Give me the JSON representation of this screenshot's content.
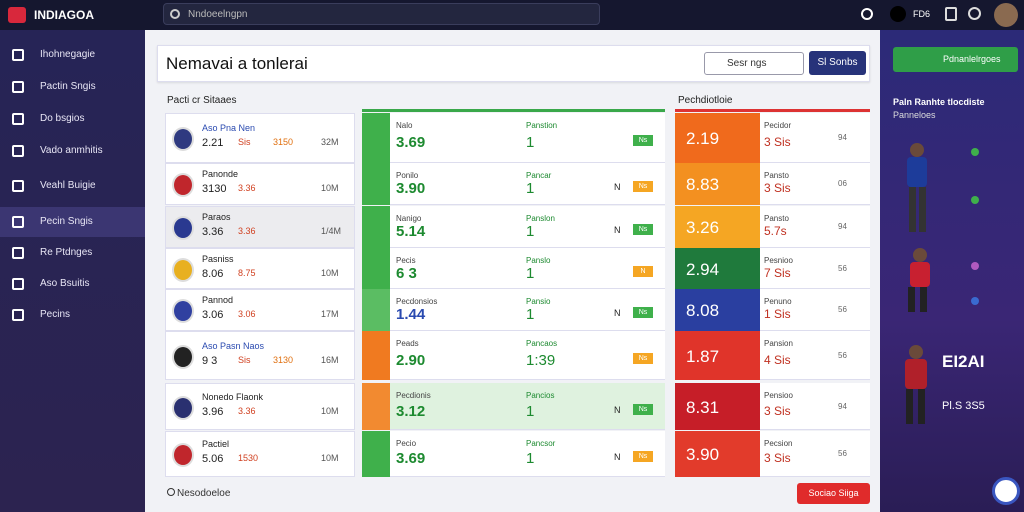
{
  "topbar": {
    "logo": "INDIAGOA",
    "search_placeholder": "Nndoeelngpn",
    "user_code": "FD6"
  },
  "sidebar": {
    "items": [
      "Ihohnegagie",
      "Pactin Sngis",
      "Do bsgios",
      "Vado anmhitis",
      "Veahl Buigie",
      "Pecin Sngis",
      "Re Ptdnges",
      "Aso Bsuitis",
      "Pecins"
    ],
    "active": 5
  },
  "main": {
    "title": "Nemavai a tonlerai",
    "search_placeholder": "Sesr ngs",
    "search_button": "Sl Sonbs",
    "section_left": "Pacti cr Sitaaes",
    "section_right": "Pechdiotloie",
    "rows": [
      {
        "team": "Aso Pna Nen",
        "s1": "2.21",
        "s2": "Sis",
        "s3": "3150",
        "s4": "32M",
        "mh": "Nalo",
        "mv": "3.69",
        "ml": "Panstion",
        "mn": "1",
        "mt": "Ns",
        "rv": "2.19",
        "rl": "Pecidor",
        "rs": "3 Sis",
        "rn": "94"
      },
      {
        "team": "Panonde",
        "s1": "3130",
        "s2": "3.36",
        "s4": "10M",
        "mh": "Ponilo",
        "mv": "3.90",
        "ml": "Pancar",
        "mn": "1",
        "mt": "Ns",
        "mk": "N",
        "rv": "8.83",
        "rl": "Pansto",
        "rs": "3 Sis",
        "rn": "06"
      },
      {
        "team": "Paraos",
        "s1": "3.36",
        "s2": "3.36",
        "s4": "1/4M",
        "mh": "Nanigo",
        "mv": "5.14",
        "ml": "Panslon",
        "mn": "1",
        "mt": "Ns",
        "mk": "N",
        "rv": "3.26",
        "rl": "Pansto",
        "rs": "5.7s",
        "rn": "94"
      },
      {
        "team": "Pasniss",
        "s1": "8.06",
        "s2": "8.75",
        "s4": "10M",
        "mh": "Pecis",
        "mv": "6 3",
        "ml": "Panslo",
        "mn": "1",
        "mt": "N",
        "rv": "2.94",
        "rl": "Pesnioo",
        "rs": "7 Sis",
        "rn": "56"
      },
      {
        "team": "Pannod",
        "s1": "3.06",
        "s2": "3.06",
        "s4": "17M",
        "mh": "Pecdonsios",
        "mv": "1.44",
        "ml": "Pansio",
        "mn": "1",
        "mt": "Ns",
        "mk": "N",
        "rv": "8.08",
        "rl": "Penuno",
        "rs": "1 Sis",
        "rn": "56"
      },
      {
        "team": "Aso Pasn Naos",
        "s1": "9 3",
        "s2": "Sis",
        "s3": "3130",
        "s4": "16M",
        "mh": "Peads",
        "mv": "2.90",
        "ml": "Pancaos",
        "mn": "1:39",
        "mt": "Ns",
        "rv": "1.87",
        "rl": "Pansion",
        "rs": "4 Sis",
        "rn": "56"
      },
      {
        "team": "Nonedo Flaonk",
        "s1": "3.96",
        "s2": "3.36",
        "s4": "10M",
        "mh": "Pecdionis",
        "mv": "3.12",
        "ml": "Pancios",
        "mn": "1",
        "mt": "Ns",
        "mk": "N",
        "rv": "8.31",
        "rl": "Pensioo",
        "rs": "3 Sis",
        "rn": "94"
      },
      {
        "team": "Pactiel",
        "s1": "5.06",
        "s2": "1530",
        "s4": "10M",
        "mh": "Pecio",
        "mv": "3.69",
        "ml": "Pancsor",
        "mn": "1",
        "mt": "Ns",
        "mk": "N",
        "rv": "3.90",
        "rl": "Pecsion",
        "rs": "3 Sis",
        "rn": "56"
      }
    ],
    "footer_label": "Nesodoeloe",
    "footer_button": "Sociao Siiga"
  },
  "rightpanel": {
    "button": "Pdnanlelrgoes",
    "heading": "Paln Ranhte tlocdiste",
    "subheading": "Panneloes",
    "score": "EI2AI",
    "score_sub": "Pl.S 3S5"
  }
}
